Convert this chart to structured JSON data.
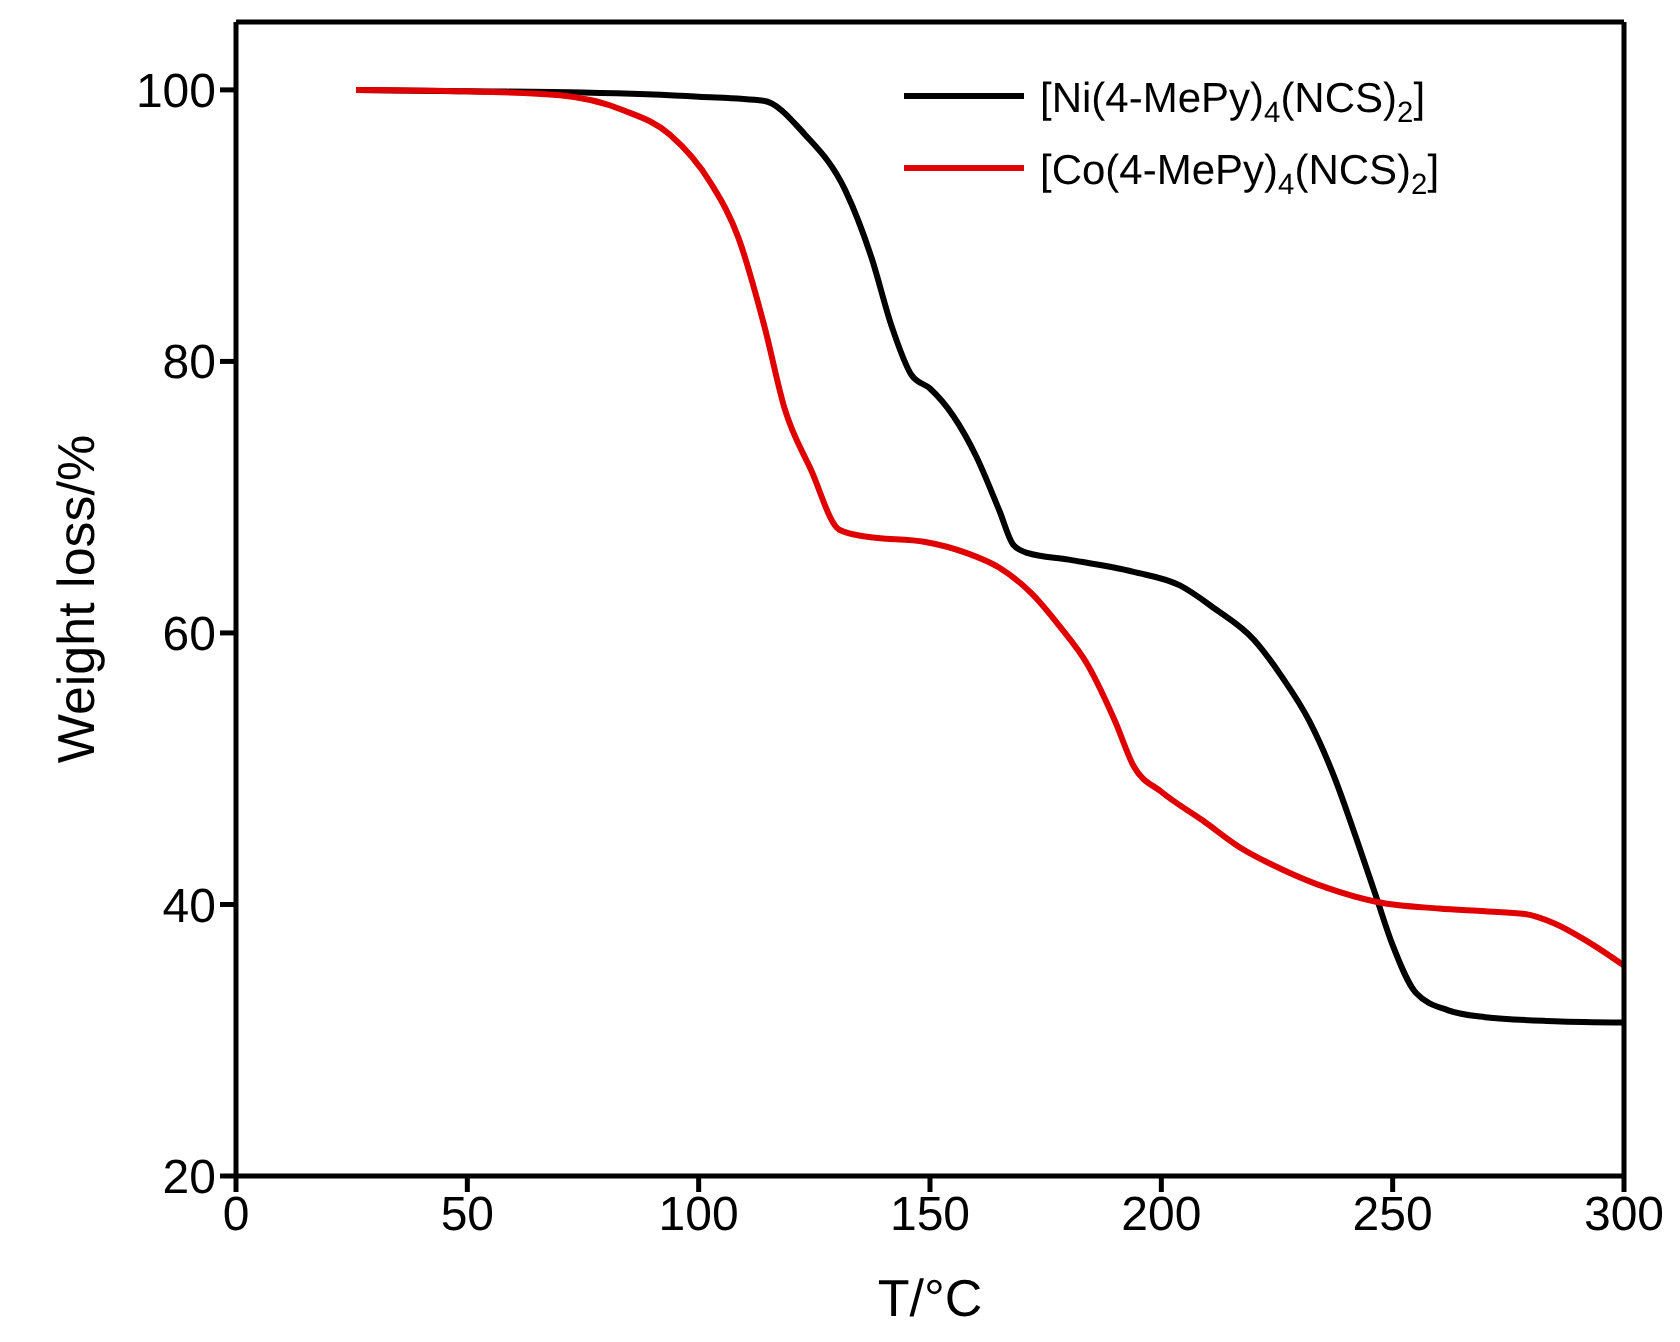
{
  "chart_data": {
    "type": "line",
    "xlabel": "T/°C",
    "ylabel": "Weight loss/%",
    "xlim": [
      0,
      300
    ],
    "xticks": [
      0,
      50,
      100,
      150,
      200,
      250,
      300
    ],
    "ylim": [
      20,
      105
    ],
    "yticks": [
      20,
      40,
      60,
      80,
      100
    ],
    "legend": "top right",
    "marker": "none",
    "line_style": "solid",
    "series": [
      {
        "name": "[Ni(4-MePy)$_{4}$(NCS)$_{2}$]",
        "color": "#000000",
        "x": [
          26,
          50,
          75,
          100,
          114,
          123,
          131.7,
          137.4,
          141.7,
          146,
          150,
          155,
          160,
          165,
          168,
          171,
          180,
          194,
          204,
          211.5,
          220,
          226,
          232,
          237.6,
          242,
          246.4,
          250,
          255,
          262,
          270,
          285,
          300
        ],
        "values": [
          100,
          99.9,
          99.8,
          99.5,
          99.2,
          96.7,
          92.6,
          87.6,
          82.6,
          79,
          78,
          76,
          73,
          69,
          66.5,
          65.9,
          65.4,
          64.5,
          63.5,
          61.8,
          59.5,
          56.8,
          53.5,
          49.2,
          45,
          40.6,
          37,
          33.5,
          32.2,
          31.7,
          31.4,
          31.3
        ]
      },
      {
        "name": "[Co(4-MePy)$_{4}$(NCS)$_{2}$]",
        "color": "#e00000",
        "x": [
          26,
          50,
          70,
          83.7,
          93.8,
          102.5,
          108.6,
          114.2,
          118.6,
          124.3,
          130.4,
          136,
          149,
          157.8,
          165,
          172,
          178,
          184,
          190,
          194,
          200,
          208.9,
          217,
          226,
          236,
          246.4,
          260,
          270,
          278.6,
          285,
          292,
          300
        ],
        "values": [
          100,
          99.9,
          99.6,
          98.5,
          96.7,
          93.2,
          89.1,
          82.6,
          76.5,
          72,
          67.6,
          67.1,
          66.7,
          65.9,
          64.8,
          62.9,
          60.5,
          57.7,
          53.5,
          50.2,
          48.3,
          46.2,
          44.2,
          42.6,
          41.2,
          40.2,
          39.7,
          39.5,
          39.3,
          38.6,
          37.3,
          35.5
        ]
      }
    ]
  }
}
